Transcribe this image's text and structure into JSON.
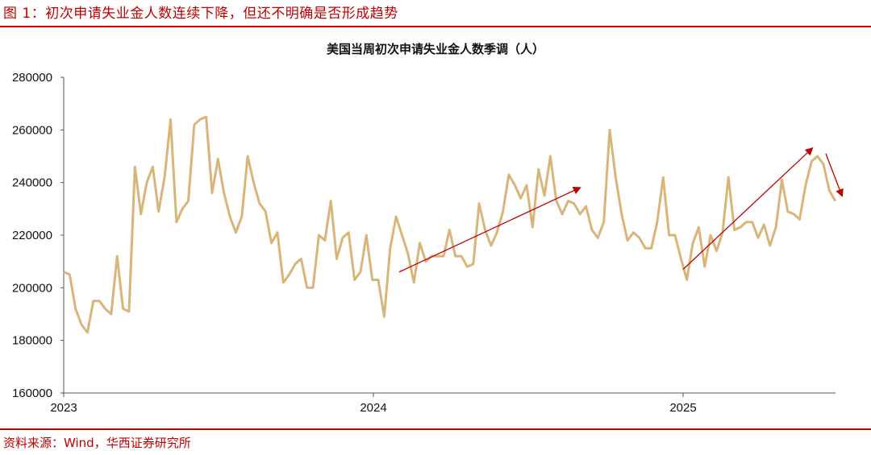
{
  "header": {
    "figure_title": "图 1：初次申请失业金人数连续下降，但还不明确是否形成趋势"
  },
  "footer": {
    "source": "资料来源：Wind，华西证券研究所"
  },
  "colors": {
    "accent_red": "#c00000",
    "line": "#d9b57a",
    "arrow": "#c00000"
  },
  "chart_data": {
    "type": "line",
    "title": "美国当周初次申请失业金人数季调（人）",
    "xlabel": "",
    "ylabel": "",
    "ylim": [
      160000,
      280000
    ],
    "yticks": [
      160000,
      180000,
      200000,
      220000,
      240000,
      260000,
      280000
    ],
    "ytick_labels": [
      "160000",
      "180000",
      "200000",
      "220000",
      "240000",
      "260000",
      "280000"
    ],
    "xticks": [
      "2023",
      "2024",
      "2025"
    ],
    "grid": false,
    "legend": null,
    "frequency": "weekly",
    "x_start": "2023-01",
    "series": [
      {
        "name": "美国当周初次申请失业金人数季调",
        "values": [
          206000,
          205000,
          192000,
          186000,
          183000,
          195000,
          195000,
          192000,
          190000,
          212000,
          192000,
          191000,
          246000,
          228000,
          240000,
          246000,
          229000,
          242000,
          264000,
          225000,
          230000,
          233000,
          262000,
          264000,
          265000,
          236000,
          249000,
          236000,
          227000,
          221000,
          227000,
          250000,
          240000,
          232000,
          229000,
          217000,
          221000,
          202000,
          205000,
          209000,
          211000,
          200000,
          200000,
          220000,
          218000,
          233000,
          211000,
          219000,
          221000,
          203000,
          206000,
          220000,
          203000,
          203000,
          189000,
          215000,
          227000,
          220000,
          213000,
          202000,
          217000,
          210000,
          212000,
          212000,
          212000,
          222000,
          212000,
          212000,
          208000,
          209000,
          232000,
          222000,
          216000,
          221000,
          229000,
          243000,
          239000,
          234000,
          239000,
          223000,
          245000,
          235000,
          250000,
          233000,
          228000,
          233000,
          232000,
          228000,
          231000,
          222000,
          219000,
          225000,
          260000,
          242000,
          228000,
          218000,
          221000,
          219000,
          215000,
          215000,
          225000,
          242000,
          220000,
          220000,
          211000,
          203000,
          217000,
          223000,
          208000,
          220000,
          214000,
          221000,
          242000,
          222000,
          223000,
          225000,
          225000,
          219000,
          224000,
          216000,
          223000,
          241000,
          229000,
          228000,
          226000,
          239000,
          248000,
          250000,
          247000,
          237000,
          233000
        ]
      }
    ],
    "annotations": [
      {
        "type": "arrow",
        "from": [
          "2024-02",
          206000
        ],
        "to": [
          "2024-09",
          238000
        ],
        "color": "#c00000"
      },
      {
        "type": "arrow",
        "from": [
          "2025-01",
          207000
        ],
        "to": [
          "2025-06",
          253000
        ],
        "color": "#c00000"
      },
      {
        "type": "arrow",
        "from": [
          "2025-07",
          251000
        ],
        "to": [
          "2025-07",
          235000
        ],
        "color": "#c00000"
      }
    ]
  }
}
